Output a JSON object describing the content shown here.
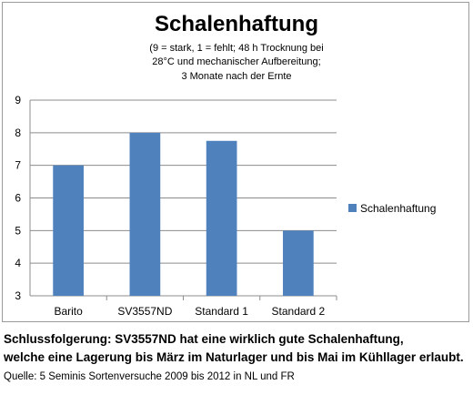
{
  "chart_data": {
    "type": "bar",
    "title": "Schalenhaftung",
    "subtitle_lines": [
      "(9 = stark, 1 = fehlt; 48 h Trocknung bei",
      "28°C und mechanischer Aufbereitung;",
      "3 Monate nach der Ernte"
    ],
    "categories": [
      "Barito",
      "SV3557ND",
      "Standard 1",
      "Standard 2"
    ],
    "series": [
      {
        "name": "Schalenhaftung",
        "values": [
          7,
          8,
          7.75,
          5
        ],
        "color": "#4f81bd"
      }
    ],
    "ylim": [
      3,
      9
    ],
    "yticks": [
      3,
      4,
      5,
      6,
      7,
      8,
      9
    ],
    "grid": true,
    "legend": "right"
  },
  "conclusion_lines": [
    "Schlussfolgerung: SV3557ND hat eine wirklich gute Schalenhaftung,",
    "welche eine Lagerung bis März im Naturlager und bis Mai im Kühllager erlaubt."
  ],
  "source": "Quelle: 5 Seminis Sortenversuche 2009 bis 2012 in NL und FR"
}
